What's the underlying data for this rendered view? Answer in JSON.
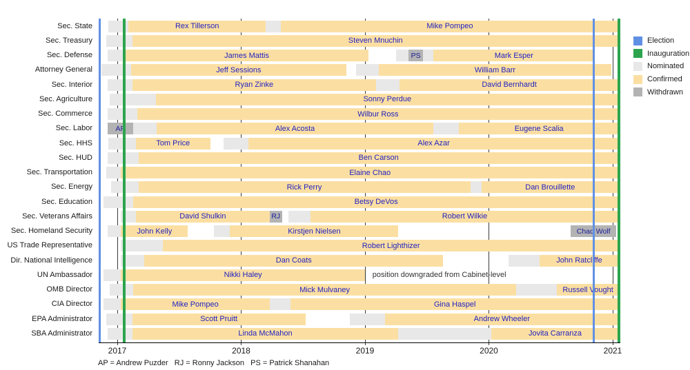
{
  "colors": {
    "election": "#6090e4",
    "inauguration": "#2ca44e",
    "nominated": "#e8e8e8",
    "confirmed": "#fbdfa2",
    "withdrawn": "#b3b3b3",
    "bar_text": "#2222c0"
  },
  "legend": {
    "items": [
      {
        "label": "Election",
        "key": "election"
      },
      {
        "label": "Inauguration",
        "key": "inauguration"
      },
      {
        "label": "Nominated",
        "key": "nominated"
      },
      {
        "label": "Confirmed",
        "key": "confirmed"
      },
      {
        "label": "Withdrawn",
        "key": "withdrawn"
      }
    ]
  },
  "footnote": "AP = Andrew Puzder   RJ = Ronny Jackson   PS = Patrick Shanahan",
  "chart_data": {
    "type": "gantt",
    "x_axis": {
      "ticks": [
        2017,
        2018,
        2019,
        2020,
        2021
      ],
      "range": [
        2016.85,
        2021.06
      ]
    },
    "events": [
      {
        "label": "Election",
        "year": 2016.856,
        "key": "election"
      },
      {
        "label": "Inauguration",
        "year": 2017.056,
        "key": "inauguration"
      },
      {
        "label": "Election",
        "year": 2020.845,
        "key": "election"
      },
      {
        "label": "Inauguration",
        "year": 2021.05,
        "key": "inauguration"
      }
    ],
    "rows": [
      {
        "label": "Sec. State",
        "segments": [
          {
            "t": "n",
            "a": 2016.93,
            "b": 2017.09
          },
          {
            "t": "c",
            "a": 2017.09,
            "b": 2018.2,
            "text": "Rex Tillerson"
          },
          {
            "t": "n",
            "a": 2018.2,
            "b": 2018.32
          },
          {
            "t": "c",
            "a": 2018.32,
            "b": 2021.05,
            "text": "Mike Pompeo"
          }
        ]
      },
      {
        "label": "Sec. Treasury",
        "segments": [
          {
            "t": "n",
            "a": 2016.91,
            "b": 2017.12
          },
          {
            "t": "c",
            "a": 2017.12,
            "b": 2021.05,
            "text": "Steven Mnuchin"
          }
        ]
      },
      {
        "label": "Sec. Defense",
        "segments": [
          {
            "t": "n",
            "a": 2016.92,
            "b": 2017.06
          },
          {
            "t": "c",
            "a": 2017.06,
            "b": 2019.03,
            "text": "James Mattis"
          },
          {
            "t": "n",
            "a": 2019.25,
            "b": 2019.35
          },
          {
            "t": "w",
            "a": 2019.35,
            "b": 2019.47,
            "text": "PS"
          },
          {
            "t": "n",
            "a": 2019.47,
            "b": 2019.55
          },
          {
            "t": "c",
            "a": 2019.55,
            "b": 2020.855,
            "text": "Mark Esper"
          }
        ]
      },
      {
        "label": "Attorney General",
        "segments": [
          {
            "t": "n",
            "a": 2016.87,
            "b": 2017.11
          },
          {
            "t": "c",
            "a": 2017.11,
            "b": 2018.85,
            "text": "Jeff Sessions"
          },
          {
            "t": "n",
            "a": 2018.93,
            "b": 2019.11
          },
          {
            "t": "c",
            "a": 2019.11,
            "b": 2020.99,
            "text": "William Barr"
          }
        ]
      },
      {
        "label": "Sec. Interior",
        "segments": [
          {
            "t": "n",
            "a": 2016.92,
            "b": 2017.12
          },
          {
            "t": "c",
            "a": 2017.12,
            "b": 2019.09,
            "text": "Ryan Zinke"
          },
          {
            "t": "n",
            "a": 2019.09,
            "b": 2019.28
          },
          {
            "t": "c",
            "a": 2019.28,
            "b": 2021.05,
            "text": "David Bernhardt"
          }
        ]
      },
      {
        "label": "Sec. Agriculture",
        "segments": [
          {
            "t": "n",
            "a": 2016.94,
            "b": 2017.31
          },
          {
            "t": "c",
            "a": 2017.31,
            "b": 2021.05,
            "text": "Sonny Perdue"
          }
        ]
      },
      {
        "label": "Sec. Commerce",
        "segments": [
          {
            "t": "n",
            "a": 2016.92,
            "b": 2017.16
          },
          {
            "t": "c",
            "a": 2017.16,
            "b": 2021.05,
            "text": "Wilbur Ross"
          }
        ]
      },
      {
        "label": "Sec. Labor",
        "segments": [
          {
            "t": "w",
            "a": 2016.92,
            "b": 2017.13,
            "text": "AP"
          },
          {
            "t": "n",
            "a": 2017.13,
            "b": 2017.32
          },
          {
            "t": "c",
            "a": 2017.32,
            "b": 2019.55,
            "text": "Alex Acosta"
          },
          {
            "t": "n",
            "a": 2019.55,
            "b": 2019.76
          },
          {
            "t": "c",
            "a": 2019.76,
            "b": 2021.05,
            "text": "Eugene Scalia"
          }
        ]
      },
      {
        "label": "Sec. HHS",
        "segments": [
          {
            "t": "n",
            "a": 2016.93,
            "b": 2017.15
          },
          {
            "t": "c",
            "a": 2017.15,
            "b": 2017.75,
            "text": "Tom Price"
          },
          {
            "t": "n",
            "a": 2017.86,
            "b": 2018.06
          },
          {
            "t": "c",
            "a": 2018.06,
            "b": 2021.05,
            "text": "Alex Azar"
          }
        ]
      },
      {
        "label": "Sec. HUD",
        "segments": [
          {
            "t": "n",
            "a": 2016.92,
            "b": 2017.17
          },
          {
            "t": "c",
            "a": 2017.17,
            "b": 2021.05,
            "text": "Ben Carson"
          }
        ]
      },
      {
        "label": "Sec. Transportation",
        "segments": [
          {
            "t": "n",
            "a": 2016.91,
            "b": 2017.03
          },
          {
            "t": "c",
            "a": 2017.03,
            "b": 2021.05,
            "text": "Elaine Chao"
          }
        ]
      },
      {
        "label": "Sec. Energy",
        "segments": [
          {
            "t": "n",
            "a": 2016.95,
            "b": 2017.17
          },
          {
            "t": "c",
            "a": 2017.17,
            "b": 2019.85,
            "text": "Rick Perry"
          },
          {
            "t": "n",
            "a": 2019.85,
            "b": 2019.94
          },
          {
            "t": "c",
            "a": 2019.94,
            "b": 2021.05,
            "text": "Dan Brouillette"
          }
        ]
      },
      {
        "label": "Sec. Education",
        "segments": [
          {
            "t": "n",
            "a": 2016.89,
            "b": 2017.13
          },
          {
            "t": "c",
            "a": 2017.13,
            "b": 2021.05,
            "text": "Betsy DeVos"
          }
        ]
      },
      {
        "label": "Sec. Veterans Affairs",
        "segments": [
          {
            "t": "n",
            "a": 2017.03,
            "b": 2017.15
          },
          {
            "t": "c",
            "a": 2017.15,
            "b": 2018.23,
            "text": "David Shulkin"
          },
          {
            "t": "w",
            "a": 2018.23,
            "b": 2018.33,
            "text": "RJ"
          },
          {
            "t": "n",
            "a": 2018.38,
            "b": 2018.56
          },
          {
            "t": "c",
            "a": 2018.56,
            "b": 2021.05,
            "text": "Robert Wilkie"
          }
        ]
      },
      {
        "label": "Sec. Homeland Security",
        "segments": [
          {
            "t": "n",
            "a": 2016.92,
            "b": 2017.03
          },
          {
            "t": "c",
            "a": 2017.03,
            "b": 2017.57,
            "text": "John Kelly"
          },
          {
            "t": "n",
            "a": 2017.78,
            "b": 2017.91
          },
          {
            "t": "c",
            "a": 2017.91,
            "b": 2019.27,
            "text": "Kirstjen Nielsen"
          },
          {
            "t": "w",
            "a": 2020.66,
            "b": 2021.03,
            "text": "Chad Wolf"
          }
        ]
      },
      {
        "label": "US Trade Representative",
        "segments": [
          {
            "t": "n",
            "a": 2017.03,
            "b": 2017.37
          },
          {
            "t": "c",
            "a": 2017.37,
            "b": 2021.05,
            "text": "Robert Lighthizer"
          }
        ]
      },
      {
        "label": "Dir. National Intelligence",
        "segments": [
          {
            "t": "n",
            "a": 2017.03,
            "b": 2017.22
          },
          {
            "t": "c",
            "a": 2017.22,
            "b": 2019.63,
            "text": "Dan Coats"
          },
          {
            "t": "n",
            "a": 2020.16,
            "b": 2020.41
          },
          {
            "t": "c",
            "a": 2020.41,
            "b": 2021.05,
            "text": "John Ratcliffe"
          }
        ]
      },
      {
        "label": "UN Ambassador",
        "segments": [
          {
            "t": "n",
            "a": 2016.89,
            "b": 2017.03
          },
          {
            "t": "c",
            "a": 2017.03,
            "b": 2019.0,
            "text": "Nikki Haley"
          },
          {
            "t": "note",
            "a": 2019.06,
            "b": 2021.0,
            "text": "position downgraded from Cabinet-level"
          }
        ]
      },
      {
        "label": "OMB Director",
        "segments": [
          {
            "t": "n",
            "a": 2016.94,
            "b": 2017.13
          },
          {
            "t": "c",
            "a": 2017.13,
            "b": 2020.22,
            "text": "Mick Mulvaney"
          },
          {
            "t": "n",
            "a": 2020.22,
            "b": 2020.55
          },
          {
            "t": "c",
            "a": 2020.55,
            "b": 2021.05,
            "text": "Russell Vought"
          }
        ]
      },
      {
        "label": "CIA Director",
        "segments": [
          {
            "t": "n",
            "a": 2016.89,
            "b": 2017.03
          },
          {
            "t": "c",
            "a": 2017.03,
            "b": 2018.23,
            "text": "Mike Pompeo"
          },
          {
            "t": "n",
            "a": 2018.23,
            "b": 2018.4
          },
          {
            "t": "c",
            "a": 2018.4,
            "b": 2021.05,
            "text": "Gina Haspel"
          }
        ]
      },
      {
        "label": "EPA Administrator",
        "segments": [
          {
            "t": "n",
            "a": 2016.91,
            "b": 2017.12
          },
          {
            "t": "c",
            "a": 2017.12,
            "b": 2018.52,
            "text": "Scott Pruitt"
          },
          {
            "t": "n",
            "a": 2018.88,
            "b": 2019.16
          },
          {
            "t": "c",
            "a": 2019.16,
            "b": 2021.05,
            "text": "Andrew Wheeler"
          }
        ]
      },
      {
        "label": "SBA Administrator",
        "segments": [
          {
            "t": "n",
            "a": 2016.92,
            "b": 2017.12
          },
          {
            "t": "c",
            "a": 2017.12,
            "b": 2019.27,
            "text": "Linda McMahon"
          },
          {
            "t": "n",
            "a": 2019.27,
            "b": 2020.02
          },
          {
            "t": "c",
            "a": 2020.02,
            "b": 2021.05,
            "text": "Jovita Carranza"
          }
        ]
      }
    ]
  }
}
